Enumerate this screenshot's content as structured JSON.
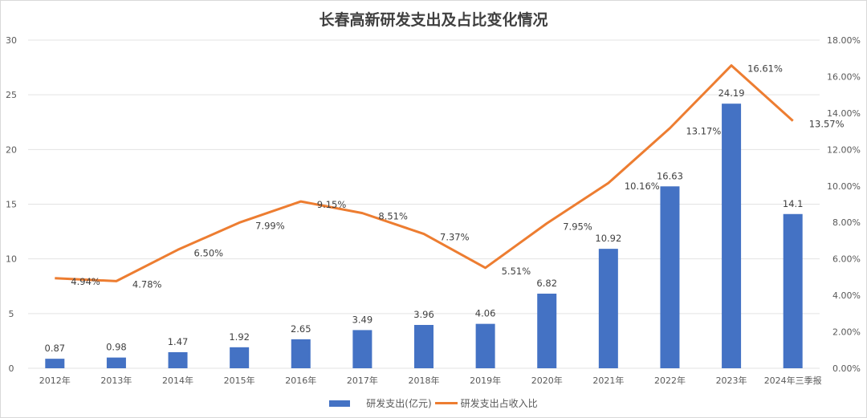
{
  "chart_data": {
    "type": "bar+line",
    "title": "长春高新研发支出及占比变化情况",
    "categories": [
      "2012年",
      "2013年",
      "2014年",
      "2015年",
      "2016年",
      "2017年",
      "2018年",
      "2019年",
      "2020年",
      "2021年",
      "2022年",
      "2023年",
      "2024年三季报"
    ],
    "series": [
      {
        "name": "研发支出(亿元)",
        "type": "bar",
        "axis": "left",
        "color": "#4472C4",
        "values": [
          0.87,
          0.98,
          1.47,
          1.92,
          2.65,
          3.49,
          3.96,
          4.06,
          6.82,
          10.92,
          16.63,
          24.19,
          14.1
        ],
        "labels": [
          "0.87",
          "0.98",
          "1.47",
          "1.92",
          "2.65",
          "3.49",
          "3.96",
          "4.06",
          "6.82",
          "10.92",
          "16.63",
          "24.19",
          "14.1"
        ]
      },
      {
        "name": "研发支出占收入比",
        "type": "line",
        "axis": "right",
        "color": "#ED7D31",
        "values": [
          4.94,
          4.78,
          6.5,
          7.99,
          9.15,
          8.51,
          7.37,
          5.51,
          7.95,
          10.16,
          13.17,
          16.61,
          13.57
        ],
        "labels": [
          "4.94%",
          "4.78%",
          "6.50%",
          "7.99%",
          "9.15%",
          "8.51%",
          "7.37%",
          "5.51%",
          "7.95%",
          "10.16%",
          "13.17%",
          "16.61%",
          "13.57%"
        ]
      }
    ],
    "y_left": {
      "range": [
        0,
        30
      ],
      "ticks": [
        "0",
        "5",
        "10",
        "15",
        "20",
        "25",
        "30"
      ]
    },
    "y_right": {
      "range": [
        0,
        18
      ],
      "ticks": [
        "0.00%",
        "2.00%",
        "4.00%",
        "6.00%",
        "8.00%",
        "10.00%",
        "12.00%",
        "14.00%",
        "16.00%",
        "18.00%"
      ]
    },
    "grid": true,
    "legend": "bottom"
  }
}
